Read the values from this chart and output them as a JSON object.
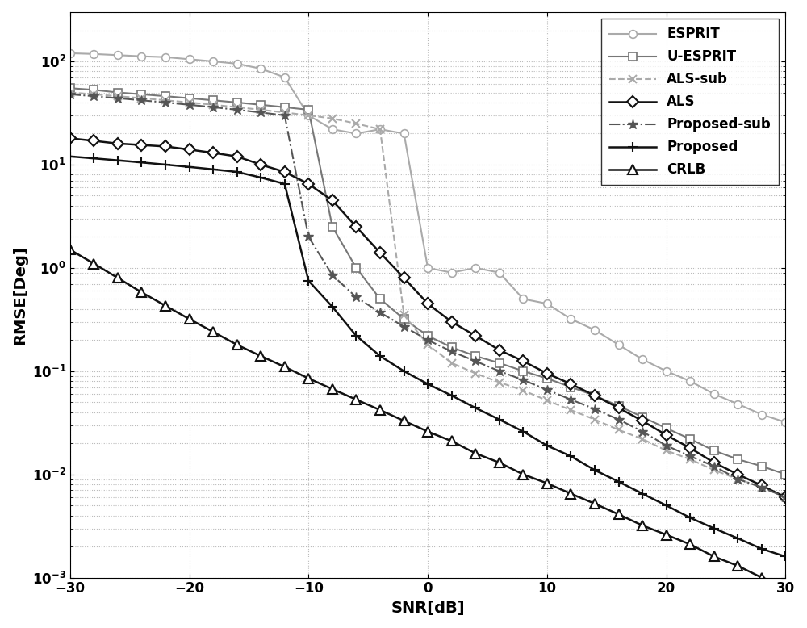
{
  "snr": [
    -30,
    -28,
    -26,
    -24,
    -22,
    -20,
    -18,
    -16,
    -14,
    -12,
    -10,
    -8,
    -6,
    -4,
    -2,
    0,
    2,
    4,
    6,
    8,
    10,
    12,
    14,
    16,
    18,
    20,
    22,
    24,
    26,
    28,
    30
  ],
  "ESPRIT": [
    120,
    118,
    115,
    112,
    110,
    105,
    100,
    95,
    85,
    70,
    30,
    22,
    20,
    22,
    20,
    1.0,
    0.9,
    1.0,
    0.9,
    0.5,
    0.45,
    0.32,
    0.25,
    0.18,
    0.13,
    0.1,
    0.08,
    0.06,
    0.048,
    0.038,
    0.032
  ],
  "U_ESPRIT": [
    55,
    53,
    50,
    48,
    46,
    44,
    42,
    40,
    38,
    36,
    34,
    2.5,
    1.0,
    0.5,
    0.32,
    0.22,
    0.17,
    0.14,
    0.12,
    0.1,
    0.085,
    0.07,
    0.058,
    0.046,
    0.036,
    0.028,
    0.022,
    0.017,
    0.014,
    0.012,
    0.01
  ],
  "ALS_sub": [
    50,
    48,
    46,
    44,
    42,
    40,
    38,
    36,
    34,
    32,
    30,
    28,
    25,
    22,
    0.35,
    0.18,
    0.12,
    0.095,
    0.078,
    0.065,
    0.052,
    0.042,
    0.034,
    0.027,
    0.022,
    0.017,
    0.014,
    0.011,
    0.009,
    0.0075,
    0.006
  ],
  "ALS": [
    18,
    17,
    16,
    15.5,
    15,
    14,
    13,
    12,
    10,
    8.5,
    6.5,
    4.5,
    2.5,
    1.4,
    0.8,
    0.45,
    0.3,
    0.22,
    0.16,
    0.125,
    0.095,
    0.075,
    0.058,
    0.044,
    0.033,
    0.024,
    0.018,
    0.013,
    0.01,
    0.0078,
    0.006
  ],
  "Proposed_sub": [
    48,
    46,
    44,
    42,
    40,
    38,
    36,
    34,
    32,
    30,
    2.0,
    0.85,
    0.52,
    0.37,
    0.27,
    0.2,
    0.155,
    0.125,
    0.1,
    0.082,
    0.066,
    0.053,
    0.043,
    0.034,
    0.026,
    0.019,
    0.015,
    0.012,
    0.009,
    0.0075,
    0.006
  ],
  "Proposed": [
    12,
    11.5,
    11,
    10.5,
    10,
    9.5,
    9.0,
    8.5,
    7.5,
    6.5,
    0.75,
    0.42,
    0.22,
    0.14,
    0.1,
    0.075,
    0.058,
    0.044,
    0.034,
    0.026,
    0.019,
    0.015,
    0.011,
    0.0085,
    0.0065,
    0.005,
    0.0038,
    0.003,
    0.0024,
    0.0019,
    0.0016
  ],
  "CRLB": [
    1.5,
    1.1,
    0.8,
    0.58,
    0.43,
    0.32,
    0.24,
    0.18,
    0.14,
    0.11,
    0.085,
    0.067,
    0.053,
    0.042,
    0.033,
    0.026,
    0.021,
    0.016,
    0.013,
    0.01,
    0.0082,
    0.0065,
    0.0052,
    0.0041,
    0.0032,
    0.0026,
    0.0021,
    0.0016,
    0.0013,
    0.001,
    0.00085
  ],
  "colors": {
    "ESPRIT": "#aaaaaa",
    "U_ESPRIT": "#777777",
    "ALS_sub": "#aaaaaa",
    "ALS": "#111111",
    "Proposed_sub": "#555555",
    "Proposed": "#111111",
    "CRLB": "#111111"
  },
  "xlabel": "SNR[dB]",
  "ylabel": "RMSE[Deg]",
  "ylim_min": 0.001,
  "ylim_max": 300,
  "xlim_min": -30,
  "xlim_max": 30,
  "xticks": [
    -30,
    -20,
    -10,
    0,
    10,
    20,
    30
  ]
}
